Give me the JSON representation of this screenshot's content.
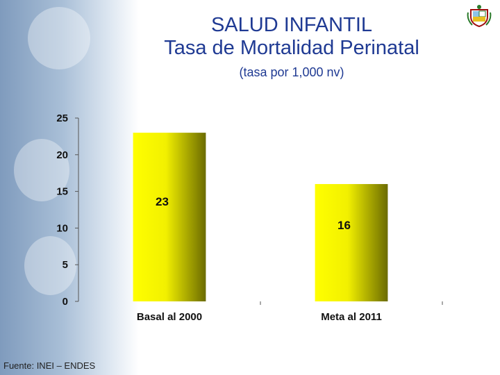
{
  "header": {
    "title_line1": "SALUD INFANTIL",
    "title_line2": "Tasa de Mortalidad Perinatal",
    "subtitle": "(tasa por 1,000 nv)"
  },
  "footer": {
    "source": "Fuente: INEI – ENDES"
  },
  "colors": {
    "title": "#1f3a93",
    "bar_light": "#ffff00",
    "bar_dark": "#6b6b00"
  },
  "icons": {
    "emblem": "peru-coat-of-arms-icon"
  },
  "chart_data": {
    "type": "bar",
    "title": "SALUD INFANTIL Tasa de Mortalidad Perinatal",
    "subtitle": "(tasa por 1,000 nv)",
    "categories": [
      "Basal al 2000",
      "Meta al 2011"
    ],
    "values": [
      23,
      16
    ],
    "data_labels": [
      "23",
      "16"
    ],
    "ylim": [
      0,
      25
    ],
    "yticks": [
      "0",
      "5",
      "10",
      "15",
      "20",
      "25"
    ],
    "grid": false,
    "legend": "none"
  }
}
